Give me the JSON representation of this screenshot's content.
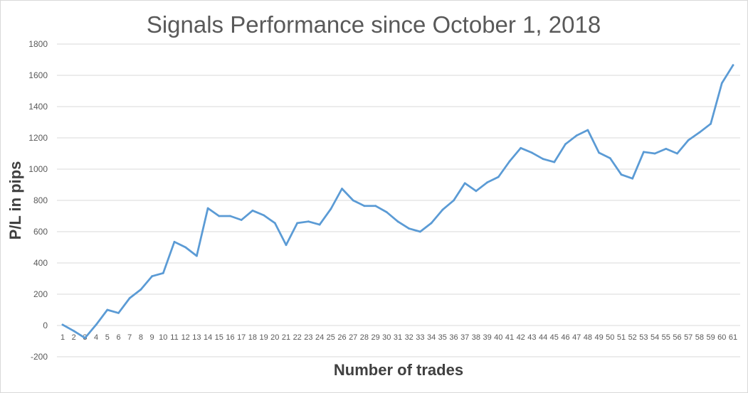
{
  "chart_data": {
    "type": "line",
    "title": "Signals Performance since October 1, 2018",
    "xlabel": "Number of trades",
    "ylabel": "P/L in pips",
    "ylim": [
      -200,
      1800
    ],
    "yticks": [
      -200,
      0,
      200,
      400,
      600,
      800,
      1000,
      1200,
      1400,
      1600,
      1800
    ],
    "grid": true,
    "legend": "none",
    "x": [
      1,
      2,
      3,
      4,
      5,
      6,
      7,
      8,
      9,
      10,
      11,
      12,
      13,
      14,
      15,
      16,
      17,
      18,
      19,
      20,
      21,
      22,
      23,
      24,
      25,
      26,
      27,
      28,
      29,
      30,
      31,
      32,
      33,
      34,
      35,
      36,
      37,
      38,
      39,
      40,
      41,
      42,
      43,
      44,
      45,
      46,
      47,
      48,
      49,
      50,
      51,
      52,
      53,
      54,
      55,
      56,
      57,
      58,
      59,
      60,
      61
    ],
    "series": [
      {
        "color": "#5b9bd5",
        "values": [
          5,
          -35,
          -80,
          5,
          100,
          80,
          175,
          230,
          315,
          335,
          535,
          500,
          445,
          750,
          700,
          700,
          675,
          735,
          705,
          655,
          515,
          655,
          665,
          645,
          745,
          875,
          800,
          765,
          765,
          725,
          665,
          620,
          600,
          655,
          740,
          800,
          910,
          860,
          915,
          950,
          1050,
          1135,
          1105,
          1065,
          1045,
          1160,
          1215,
          1250,
          1105,
          1070,
          965,
          940,
          1110,
          1100,
          1130,
          1100,
          1185,
          1235,
          1290,
          1550,
          1665
        ]
      }
    ]
  }
}
